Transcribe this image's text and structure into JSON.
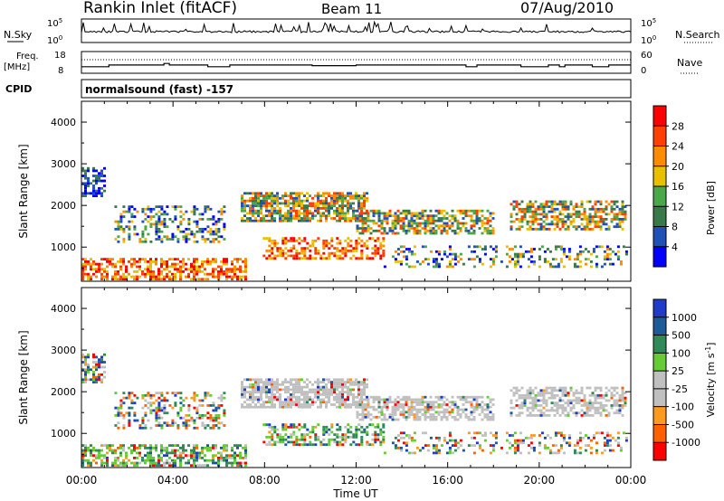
{
  "header": {
    "station": "Rankin Inlet (fitACF)",
    "beam": "Beam 11",
    "date": "07/Aug/2010"
  },
  "strips": {
    "nsky_label": "N.Sky",
    "nsky_ticks": [
      "10^5",
      "10^0"
    ],
    "nsky_right_ticks": [
      "10^5",
      "10^0"
    ],
    "nsearch_label": "N.Search",
    "freq_label_1": "Freq.",
    "freq_label_2": "[MHz]",
    "freq_ticks": [
      "18",
      "8"
    ],
    "nave_ticks": [
      "60",
      "0"
    ],
    "nave_label": "Nave",
    "cpid_label": "CPID",
    "cpid_value": "normalsound (fast) -157"
  },
  "colors": {
    "power_scale": [
      "#0000ff",
      "#2050b8",
      "#3a7a4a",
      "#4aa84a",
      "#e8c000",
      "#ff8c00",
      "#ff4000",
      "#ff0000"
    ],
    "velocity_scale": [
      "#ff0000",
      "#ff6000",
      "#ff9a20",
      "#c0c0c0",
      "#c0c0c0",
      "#66cc33",
      "#2e8b57",
      "#1e5a9a",
      "#1e3cc8"
    ],
    "frame": "#000000"
  },
  "chart_data": [
    {
      "type": "heatmap",
      "title": "Power",
      "ylabel": "Slant Range [km]",
      "xlabel": "",
      "x_ticks": [
        "00:00",
        "04:00",
        "08:00",
        "12:00",
        "16:00",
        "20:00",
        "00:00"
      ],
      "y_ticks": [
        "1000",
        "2000",
        "3000",
        "4000"
      ],
      "y_tick_values": [
        1000,
        2000,
        3000,
        4000
      ],
      "ylim": [
        180,
        4500
      ],
      "colorbar_label": "Power [dB]",
      "colorbar_ticks": [
        "4",
        "8",
        "12",
        "16",
        "20",
        "24",
        "28"
      ],
      "colorbar_range": [
        0,
        32
      ]
    },
    {
      "type": "heatmap",
      "title": "Velocity",
      "ylabel": "Slant Range [km]",
      "xlabel": "Time UT",
      "x_ticks": [
        "00:00",
        "04:00",
        "08:00",
        "12:00",
        "16:00",
        "20:00",
        "00:00"
      ],
      "y_ticks": [
        "1000",
        "2000",
        "3000",
        "4000"
      ],
      "y_tick_values": [
        1000,
        2000,
        3000,
        4000
      ],
      "ylim": [
        180,
        4500
      ],
      "colorbar_label": "Velocity [m s^-1]",
      "colorbar_ticks": [
        "1000",
        "500",
        "100",
        "25",
        "-25",
        "-100",
        "-500",
        "-1000"
      ]
    }
  ]
}
